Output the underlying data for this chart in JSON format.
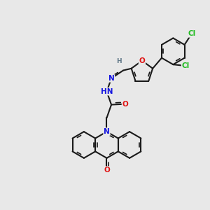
{
  "bg": "#e8e8e8",
  "bond_color": "#1a1a1a",
  "bw": 1.5,
  "dbo": 0.05,
  "bl": 0.38,
  "atom_colors": {
    "N": "#1414e0",
    "O": "#e01414",
    "Cl": "#22bb22",
    "H": "#607888"
  },
  "fsz": 7.5,
  "fsz_sm": 6.5,
  "figsize": [
    3.0,
    3.0
  ],
  "dpi": 100,
  "xlim": [
    0,
    6
  ],
  "ylim": [
    0,
    6
  ]
}
